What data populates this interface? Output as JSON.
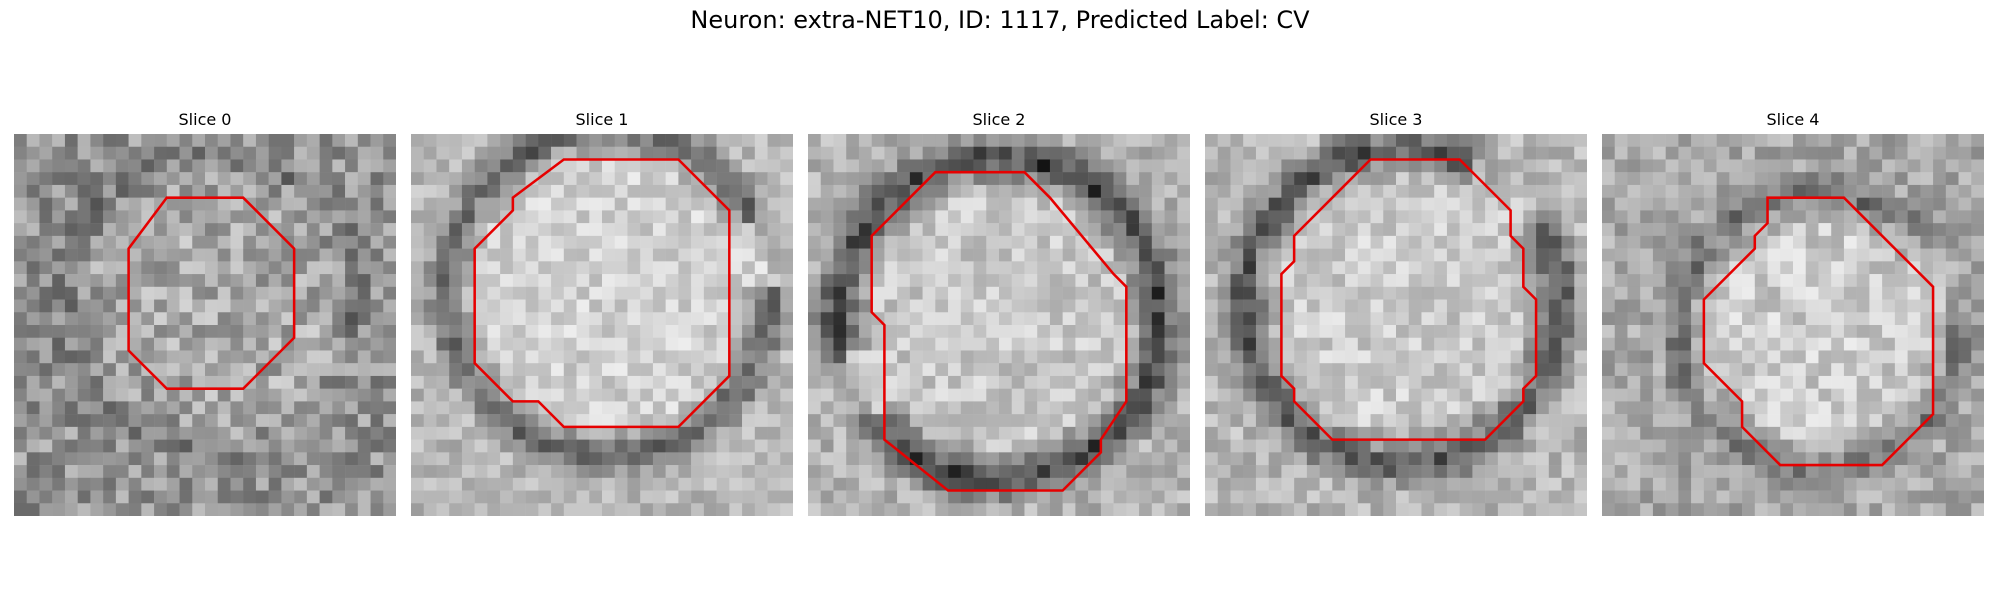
{
  "figure": {
    "title": "Neuron: extra-NET10, ID: 1117, Predicted Label: CV",
    "colormap": "gray",
    "contour_color": "#e60000"
  },
  "slices": [
    {
      "title": "Slice 0",
      "contour": [
        [
          14,
          5
        ],
        [
          18,
          5
        ],
        [
          22,
          9
        ],
        [
          22,
          16
        ],
        [
          18,
          20
        ],
        [
          12,
          20
        ],
        [
          9,
          17
        ],
        [
          9,
          9
        ],
        [
          12,
          5
        ]
      ],
      "ring": {
        "cx": 15.5,
        "cy": 13,
        "r": 11,
        "w": 2.5,
        "dark": 0.12,
        "gap_start": 0.3,
        "gap_end": 1.4
      },
      "seed": 7,
      "base": 0.58,
      "center": 0.66,
      "noise": 0.34
    },
    {
      "title": "Slice 1",
      "contour": [
        [
          14,
          2
        ],
        [
          21,
          2
        ],
        [
          25,
          6
        ],
        [
          25,
          19
        ],
        [
          21,
          23
        ],
        [
          12,
          23
        ],
        [
          10,
          21
        ],
        [
          8,
          21
        ],
        [
          5,
          18
        ],
        [
          5,
          9
        ],
        [
          8,
          6
        ],
        [
          8,
          5
        ],
        [
          12,
          2
        ]
      ],
      "ring": {
        "cx": 15.5,
        "cy": 12.5,
        "r": 12.5,
        "w": 2.2,
        "dark": 0.45,
        "gap_start": 5.8,
        "gap_end": 6.6
      },
      "seed": 23,
      "base": 0.72,
      "center": 0.82,
      "noise": 0.22
    },
    {
      "title": "Slice 2",
      "contour": [
        [
          10,
          3
        ],
        [
          17,
          3
        ],
        [
          19,
          5
        ],
        [
          24,
          11
        ],
        [
          25,
          12
        ],
        [
          25,
          21
        ],
        [
          23,
          24
        ],
        [
          23,
          25
        ],
        [
          20,
          28
        ],
        [
          11,
          28
        ],
        [
          6,
          24
        ],
        [
          6,
          15
        ],
        [
          5,
          14
        ],
        [
          5,
          8
        ],
        [
          8,
          5
        ],
        [
          9,
          4
        ]
      ],
      "ring": {
        "cx": 15,
        "cy": 14.5,
        "r": 12.5,
        "w": 2.6,
        "dark": 0.55,
        "gap_start": 2.5,
        "gap_end": 2.9
      },
      "seed": 41,
      "base": 0.7,
      "center": 0.78,
      "noise": 0.24
    },
    {
      "title": "Slice 3",
      "contour": [
        [
          13,
          2
        ],
        [
          20,
          2
        ],
        [
          24,
          6
        ],
        [
          24,
          8
        ],
        [
          25,
          9
        ],
        [
          25,
          12
        ],
        [
          26,
          13
        ],
        [
          26,
          19
        ],
        [
          25,
          20
        ],
        [
          25,
          21
        ],
        [
          22,
          24
        ],
        [
          10,
          24
        ],
        [
          7,
          21
        ],
        [
          7,
          20
        ],
        [
          6,
          19
        ],
        [
          6,
          11
        ],
        [
          7,
          10
        ],
        [
          7,
          8
        ],
        [
          11,
          4
        ],
        [
          12,
          3
        ]
      ],
      "ring": {
        "cx": 15.5,
        "cy": 13.5,
        "r": 12.2,
        "w": 2.6,
        "dark": 0.5,
        "gap_start": 5.2,
        "gap_end": 5.7
      },
      "seed": 59,
      "base": 0.72,
      "center": 0.8,
      "noise": 0.24
    },
    {
      "title": "Slice 4",
      "contour": [
        [
          13,
          5
        ],
        [
          19,
          5
        ],
        [
          26,
          12
        ],
        [
          26,
          22
        ],
        [
          22,
          26
        ],
        [
          14,
          26
        ],
        [
          11,
          23
        ],
        [
          11,
          21
        ],
        [
          8,
          18
        ],
        [
          8,
          13
        ],
        [
          12,
          9
        ],
        [
          12,
          8
        ],
        [
          13,
          7
        ]
      ],
      "ring": {
        "cx": 17,
        "cy": 15.5,
        "r": 10.5,
        "w": 2.4,
        "dark": 0.3,
        "gap_start": 5.6,
        "gap_end": 6.5
      },
      "seed": 83,
      "base": 0.66,
      "center": 0.8,
      "noise": 0.26
    }
  ]
}
